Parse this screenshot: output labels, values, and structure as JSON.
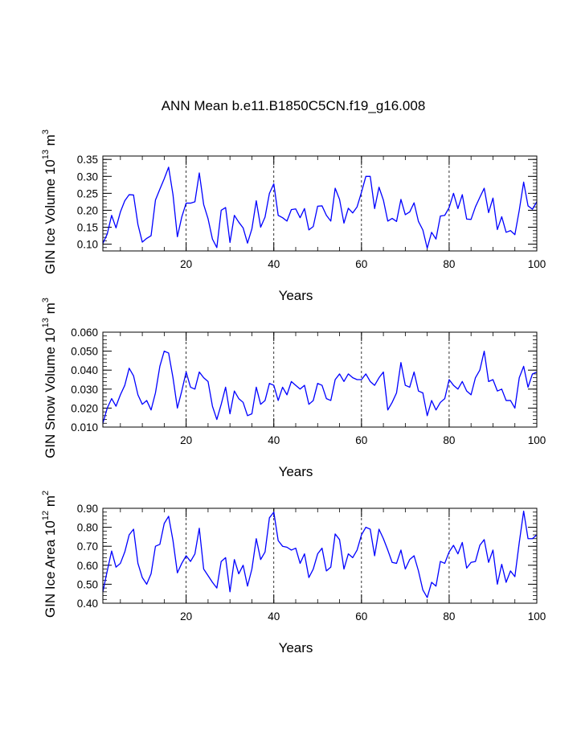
{
  "title": "ANN Mean b.e11.B1850C5CN.f19_g16.008",
  "colors": {
    "line": "#0000ff",
    "axis": "#000000",
    "grid": "#000000",
    "background": "#ffffff"
  },
  "chart_data": [
    {
      "type": "line",
      "name": "gin-ice-volume",
      "ylabel": {
        "base": "GIN Ice Volume 10",
        "exp1": "13",
        "mid": " m",
        "exp2": "3"
      },
      "xlabel": "Years",
      "xlim": [
        1,
        100
      ],
      "ylim": [
        0.08,
        0.36
      ],
      "xticks": [
        20,
        40,
        60,
        80,
        100
      ],
      "xtick_labels": [
        "20",
        "40",
        "60",
        "80",
        "100"
      ],
      "yticks": [
        0.1,
        0.15,
        0.2,
        0.25,
        0.3,
        0.35
      ],
      "ytick_labels": [
        "0.10",
        "0.15",
        "0.20",
        "0.25",
        "0.30",
        "0.35"
      ],
      "grid_x": [
        20,
        40,
        60,
        80
      ],
      "x_start": 1,
      "values": [
        0.102,
        0.13,
        0.185,
        0.148,
        0.195,
        0.228,
        0.246,
        0.245,
        0.158,
        0.106,
        0.117,
        0.125,
        0.23,
        0.262,
        0.293,
        0.327,
        0.246,
        0.122,
        0.18,
        0.221,
        0.221,
        0.225,
        0.31,
        0.217,
        0.175,
        0.115,
        0.09,
        0.2,
        0.208,
        0.105,
        0.185,
        0.165,
        0.148,
        0.103,
        0.145,
        0.228,
        0.15,
        0.18,
        0.25,
        0.278,
        0.185,
        0.178,
        0.168,
        0.202,
        0.204,
        0.178,
        0.205,
        0.142,
        0.152,
        0.212,
        0.213,
        0.185,
        0.168,
        0.265,
        0.232,
        0.162,
        0.206,
        0.192,
        0.21,
        0.253,
        0.3,
        0.3,
        0.205,
        0.268,
        0.23,
        0.168,
        0.176,
        0.167,
        0.232,
        0.187,
        0.195,
        0.222,
        0.167,
        0.142,
        0.088,
        0.135,
        0.115,
        0.183,
        0.185,
        0.208,
        0.25,
        0.205,
        0.246,
        0.174,
        0.173,
        0.21,
        0.238,
        0.265,
        0.193,
        0.236,
        0.143,
        0.181,
        0.135,
        0.14,
        0.128,
        0.2,
        0.283,
        0.213,
        0.203,
        0.225
      ]
    },
    {
      "type": "line",
      "name": "gin-snow-volume",
      "ylabel": {
        "base": "GIN Snow Volume 10",
        "exp1": "13",
        "mid": " m",
        "exp2": "3"
      },
      "xlabel": "Years",
      "xlim": [
        1,
        100
      ],
      "ylim": [
        0.01,
        0.06
      ],
      "xticks": [
        20,
        40,
        60,
        80,
        100
      ],
      "xtick_labels": [
        "20",
        "40",
        "60",
        "80",
        "100"
      ],
      "yticks": [
        0.01,
        0.02,
        0.03,
        0.04,
        0.05,
        0.06
      ],
      "ytick_labels": [
        "0.010",
        "0.020",
        "0.030",
        "0.040",
        "0.050",
        "0.060"
      ],
      "grid_x": [
        20,
        40,
        60,
        80
      ],
      "x_start": 1,
      "values": [
        0.012,
        0.02,
        0.025,
        0.021,
        0.027,
        0.032,
        0.041,
        0.037,
        0.027,
        0.022,
        0.024,
        0.019,
        0.028,
        0.042,
        0.05,
        0.049,
        0.036,
        0.02,
        0.029,
        0.039,
        0.031,
        0.03,
        0.039,
        0.036,
        0.034,
        0.021,
        0.014,
        0.022,
        0.031,
        0.017,
        0.029,
        0.025,
        0.023,
        0.016,
        0.017,
        0.031,
        0.022,
        0.024,
        0.033,
        0.032,
        0.024,
        0.031,
        0.027,
        0.034,
        0.032,
        0.03,
        0.032,
        0.022,
        0.024,
        0.033,
        0.032,
        0.025,
        0.024,
        0.035,
        0.038,
        0.034,
        0.038,
        0.036,
        0.035,
        0.035,
        0.038,
        0.034,
        0.032,
        0.036,
        0.039,
        0.019,
        0.023,
        0.028,
        0.044,
        0.032,
        0.031,
        0.039,
        0.029,
        0.028,
        0.016,
        0.024,
        0.019,
        0.023,
        0.025,
        0.035,
        0.032,
        0.03,
        0.034,
        0.029,
        0.027,
        0.036,
        0.04,
        0.05,
        0.034,
        0.035,
        0.029,
        0.03,
        0.024,
        0.024,
        0.02,
        0.036,
        0.042,
        0.031,
        0.038,
        0.039
      ]
    },
    {
      "type": "line",
      "name": "gin-ice-area",
      "ylabel": {
        "base": "GIN Ice Area 10",
        "exp1": "12",
        "mid": " m",
        "exp2": "2"
      },
      "xlabel": "Years",
      "xlim": [
        1,
        100
      ],
      "ylim": [
        0.4,
        0.9
      ],
      "xticks": [
        20,
        40,
        60,
        80,
        100
      ],
      "xtick_labels": [
        "20",
        "40",
        "60",
        "80",
        "100"
      ],
      "yticks": [
        0.4,
        0.5,
        0.6,
        0.7,
        0.8,
        0.9
      ],
      "ytick_labels": [
        "0.40",
        "0.50",
        "0.60",
        "0.70",
        "0.80",
        "0.90"
      ],
      "grid_x": [
        20,
        40,
        60,
        80
      ],
      "x_start": 1,
      "values": [
        0.46,
        0.57,
        0.675,
        0.59,
        0.61,
        0.67,
        0.76,
        0.79,
        0.61,
        0.535,
        0.5,
        0.555,
        0.7,
        0.71,
        0.82,
        0.858,
        0.73,
        0.56,
        0.61,
        0.65,
        0.62,
        0.66,
        0.795,
        0.58,
        0.545,
        0.51,
        0.48,
        0.62,
        0.64,
        0.46,
        0.63,
        0.555,
        0.6,
        0.49,
        0.58,
        0.74,
        0.63,
        0.67,
        0.85,
        0.88,
        0.73,
        0.7,
        0.695,
        0.68,
        0.69,
        0.61,
        0.66,
        0.535,
        0.58,
        0.66,
        0.69,
        0.57,
        0.59,
        0.765,
        0.735,
        0.58,
        0.66,
        0.64,
        0.68,
        0.76,
        0.8,
        0.79,
        0.65,
        0.79,
        0.74,
        0.68,
        0.615,
        0.61,
        0.68,
        0.58,
        0.63,
        0.65,
        0.57,
        0.47,
        0.43,
        0.51,
        0.49,
        0.62,
        0.61,
        0.67,
        0.705,
        0.66,
        0.72,
        0.585,
        0.615,
        0.62,
        0.705,
        0.735,
        0.615,
        0.68,
        0.5,
        0.605,
        0.51,
        0.57,
        0.54,
        0.72,
        0.885,
        0.74,
        0.74,
        0.76
      ]
    }
  ]
}
